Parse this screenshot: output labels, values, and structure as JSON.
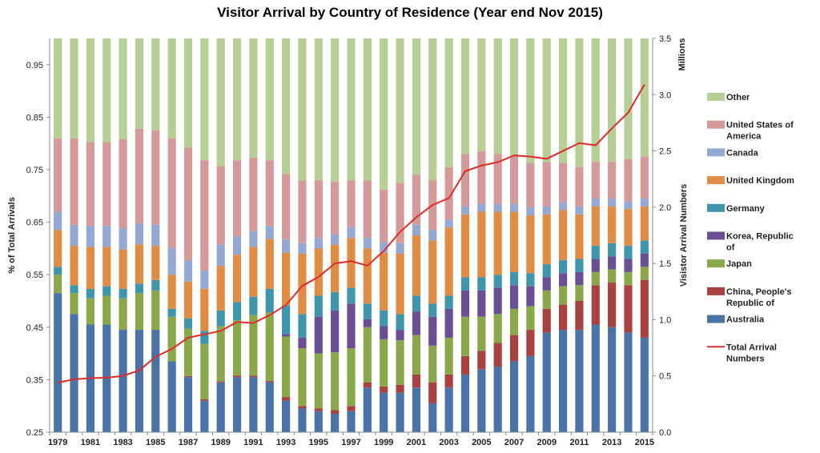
{
  "chart_data": {
    "type": "bar",
    "stacked": true,
    "title": "Visitor Arrival by Country of Residence (Year end Nov 2015)",
    "ylabel_left": "% of Total Arrivals",
    "ylabel_right": "Visistor Arrival Numbers",
    "right_unit": "Millions",
    "ylim_left": [
      0.25,
      1.0
    ],
    "yticks_left": [
      "0.25",
      "0.35",
      "0.45",
      "0.55",
      "0.65",
      "0.75",
      "0.85",
      "0.95"
    ],
    "ylim_right": [
      0,
      3.5
    ],
    "yticks_right": [
      "0.0",
      "0.5",
      "1.0",
      "1.5",
      "2.0",
      "2.5",
      "3.0",
      "3.5"
    ],
    "x": [
      1979,
      1980,
      1981,
      1982,
      1983,
      1984,
      1985,
      1986,
      1987,
      1988,
      1989,
      1990,
      1991,
      1992,
      1993,
      1994,
      1995,
      1996,
      1997,
      1998,
      1999,
      2000,
      2001,
      2002,
      2003,
      2004,
      2005,
      2006,
      2007,
      2008,
      2009,
      2010,
      2011,
      2012,
      2013,
      2014,
      2015
    ],
    "xtick_labels": [
      "1979",
      "1981",
      "1983",
      "1985",
      "1987",
      "1989",
      "1991",
      "1993",
      "1995",
      "1997",
      "1999",
      "2001",
      "2003",
      "2005",
      "2007",
      "2009",
      "2011",
      "2013",
      "2015"
    ],
    "grid": false,
    "legend_position": "right",
    "series": [
      {
        "name": "Australia",
        "color": "#4a73a8",
        "values": [
          0.515,
          0.475,
          0.455,
          0.455,
          0.445,
          0.445,
          0.445,
          0.385,
          0.355,
          0.31,
          0.345,
          0.355,
          0.355,
          0.345,
          0.31,
          0.295,
          0.29,
          0.285,
          0.29,
          0.335,
          0.325,
          0.325,
          0.335,
          0.305,
          0.335,
          0.36,
          0.37,
          0.375,
          0.385,
          0.395,
          0.44,
          0.445,
          0.445,
          0.455,
          0.45,
          0.44,
          0.43
        ]
      },
      {
        "name": "China, People's Republic of",
        "color": "#a8413f",
        "values": [
          0,
          0,
          0,
          0,
          0,
          0,
          0,
          0,
          0.002,
          0.003,
          0.002,
          0.003,
          0.003,
          0.003,
          0.007,
          0.005,
          0.005,
          0.007,
          0.01,
          0.01,
          0.012,
          0.015,
          0.025,
          0.04,
          0.025,
          0.035,
          0.035,
          0.045,
          0.05,
          0.05,
          0.045,
          0.048,
          0.055,
          0.075,
          0.085,
          0.09,
          0.11
        ]
      },
      {
        "name": "Japan",
        "color": "#8aa84a",
        "values": [
          0.035,
          0.04,
          0.05,
          0.055,
          0.06,
          0.07,
          0.075,
          0.085,
          0.09,
          0.105,
          0.105,
          0.105,
          0.115,
          0.13,
          0.115,
          0.11,
          0.105,
          0.11,
          0.11,
          0.105,
          0.09,
          0.085,
          0.075,
          0.07,
          0.07,
          0.075,
          0.065,
          0.055,
          0.05,
          0.045,
          0.035,
          0.035,
          0.03,
          0.025,
          0.025,
          0.025,
          0.025
        ]
      },
      {
        "name": "Korea, Republic of",
        "color": "#6b4f94",
        "values": [
          0,
          0,
          0,
          0,
          0,
          0,
          0,
          0,
          0,
          0,
          0,
          0,
          0,
          0,
          0.005,
          0.02,
          0.07,
          0.08,
          0.085,
          0.015,
          0.025,
          0.02,
          0.045,
          0.055,
          0.055,
          0.05,
          0.05,
          0.05,
          0.045,
          0.038,
          0.025,
          0.025,
          0.025,
          0.025,
          0.025,
          0.025,
          0.025
        ]
      },
      {
        "name": "Germany",
        "color": "#3f95ac",
        "values": [
          0.015,
          0.015,
          0.018,
          0.018,
          0.018,
          0.018,
          0.02,
          0.015,
          0.02,
          0.025,
          0.03,
          0.035,
          0.035,
          0.045,
          0.055,
          0.045,
          0.04,
          0.035,
          0.03,
          0.03,
          0.03,
          0.03,
          0.03,
          0.025,
          0.025,
          0.025,
          0.025,
          0.025,
          0.025,
          0.025,
          0.025,
          0.025,
          0.025,
          0.025,
          0.025,
          0.025,
          0.025
        ]
      },
      {
        "name": "United Kingdom",
        "color": "#e08c45",
        "values": [
          0.07,
          0.075,
          0.08,
          0.075,
          0.075,
          0.075,
          0.065,
          0.065,
          0.07,
          0.08,
          0.085,
          0.09,
          0.095,
          0.095,
          0.1,
          0.115,
          0.09,
          0.09,
          0.095,
          0.105,
          0.11,
          0.115,
          0.115,
          0.12,
          0.13,
          0.12,
          0.125,
          0.12,
          0.115,
          0.11,
          0.095,
          0.095,
          0.085,
          0.075,
          0.07,
          0.07,
          0.065
        ]
      },
      {
        "name": "Canada",
        "color": "#93a9d3",
        "values": [
          0.035,
          0.04,
          0.04,
          0.04,
          0.04,
          0.04,
          0.04,
          0.05,
          0.04,
          0.035,
          0.04,
          0.035,
          0.03,
          0.025,
          0.025,
          0.02,
          0.02,
          0.02,
          0.02,
          0.02,
          0.02,
          0.02,
          0.02,
          0.02,
          0.015,
          0.015,
          0.015,
          0.015,
          0.015,
          0.015,
          0.015,
          0.015,
          0.015,
          0.015,
          0.015,
          0.015,
          0.015
        ]
      },
      {
        "name": "United States of America",
        "color": "#d39a99",
        "values": [
          0.14,
          0.165,
          0.16,
          0.16,
          0.17,
          0.18,
          0.18,
          0.21,
          0.215,
          0.21,
          0.15,
          0.145,
          0.14,
          0.125,
          0.125,
          0.12,
          0.11,
          0.1,
          0.09,
          0.11,
          0.1,
          0.115,
          0.095,
          0.095,
          0.1,
          0.1,
          0.1,
          0.095,
          0.09,
          0.085,
          0.085,
          0.075,
          0.075,
          0.07,
          0.07,
          0.08,
          0.08
        ]
      },
      {
        "name": "Other",
        "color": "#b7cf95",
        "values": [
          0.19,
          0.19,
          0.197,
          0.197,
          0.192,
          0.172,
          0.175,
          0.19,
          0.208,
          0.232,
          0.243,
          0.232,
          0.227,
          0.232,
          0.258,
          0.27,
          0.27,
          0.273,
          0.27,
          0.27,
          0.288,
          0.275,
          0.26,
          0.27,
          0.245,
          0.22,
          0.215,
          0.22,
          0.23,
          0.237,
          0.235,
          0.237,
          0.245,
          0.235,
          0.235,
          0.23,
          0.225
        ]
      }
    ],
    "line": {
      "name": "Total Arrival Numbers",
      "color": "#e02b2b",
      "axis": "right",
      "values": [
        0.44,
        0.47,
        0.48,
        0.485,
        0.5,
        0.55,
        0.67,
        0.74,
        0.84,
        0.87,
        0.9,
        0.98,
        0.97,
        1.04,
        1.13,
        1.3,
        1.38,
        1.5,
        1.52,
        1.48,
        1.61,
        1.78,
        1.91,
        2.02,
        2.08,
        2.32,
        2.37,
        2.4,
        2.46,
        2.45,
        2.43,
        2.5,
        2.57,
        2.55,
        2.7,
        2.84,
        3.09
      ]
    }
  }
}
